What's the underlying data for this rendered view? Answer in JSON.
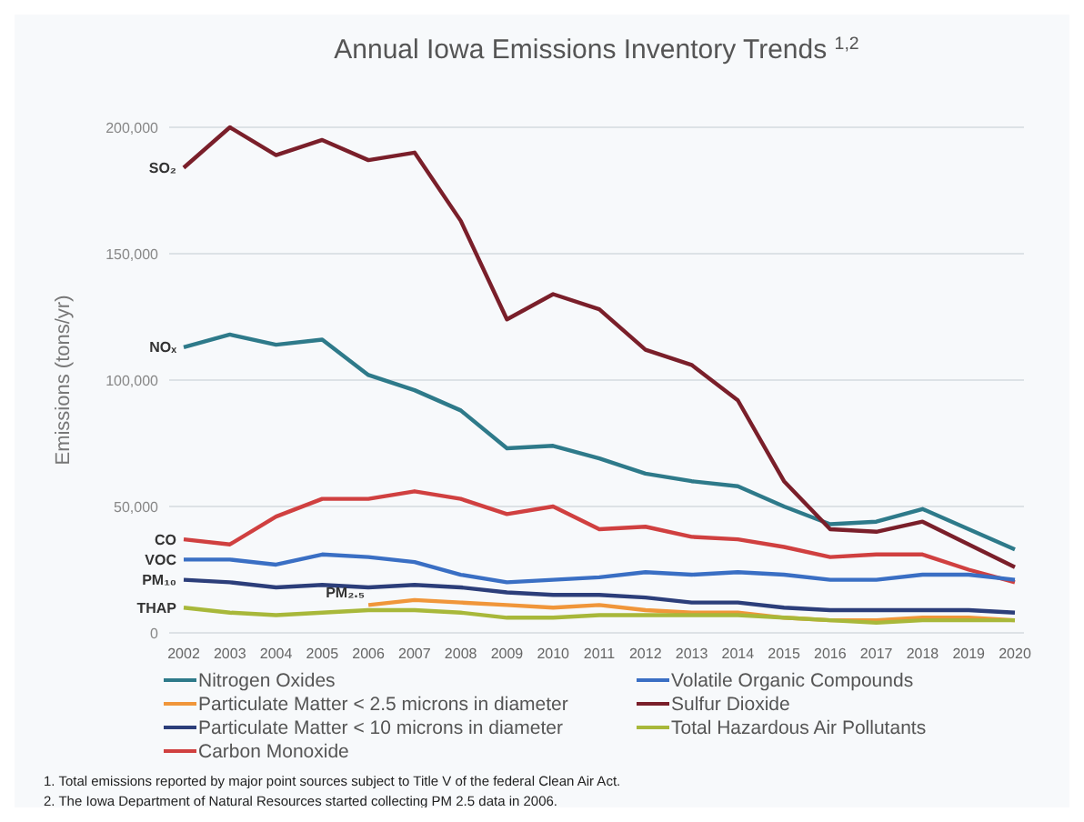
{
  "chart_data": {
    "type": "line",
    "title": "Annual Iowa Emissions Inventory Trends $^{1,2}$",
    "ylabel": "Emissions (tons/yr)",
    "categories": [
      "2002",
      "2003",
      "2004",
      "2005",
      "2006",
      "2007",
      "2008",
      "2009",
      "2010",
      "2011",
      "2012",
      "2013",
      "2014",
      "2015",
      "2016",
      "2017",
      "2018",
      "2019",
      "2020"
    ],
    "series": [
      {
        "name": "Nitrogen Oxides",
        "color": "#2e7a8a",
        "values": [
          113000,
          118000,
          114000,
          116000,
          102000,
          96000,
          88000,
          73000,
          74000,
          69000,
          63000,
          60000,
          58000,
          50000,
          43000,
          44000,
          49000,
          41000,
          33000
        ]
      },
      {
        "name": "Particulate Matter < 2.5 microns in diameter",
        "color": "#f0963a",
        "values": [
          null,
          null,
          null,
          null,
          11000,
          13000,
          12000,
          11000,
          10000,
          11000,
          9000,
          8000,
          8000,
          6000,
          5000,
          5000,
          6000,
          6000,
          5000
        ]
      },
      {
        "name": "Particulate Matter < 10 microns in diameter",
        "color": "#2c3e7a",
        "values": [
          21000,
          20000,
          18000,
          19000,
          18000,
          19000,
          18000,
          16000,
          15000,
          15000,
          14000,
          12000,
          12000,
          10000,
          9000,
          9000,
          9000,
          9000,
          8000
        ]
      },
      {
        "name": "Carbon Monoxide",
        "color": "#d04040",
        "values": [
          37000,
          35000,
          46000,
          53000,
          53000,
          56000,
          53000,
          47000,
          50000,
          41000,
          42000,
          38000,
          37000,
          34000,
          30000,
          31000,
          31000,
          25000,
          20000
        ]
      },
      {
        "name": "Volatile Organic Compounds",
        "color": "#3a6fc4",
        "values": [
          29000,
          29000,
          27000,
          31000,
          30000,
          28000,
          23000,
          20000,
          21000,
          22000,
          24000,
          23000,
          24000,
          23000,
          21000,
          21000,
          23000,
          23000,
          21000
        ]
      },
      {
        "name": "Sulfur Dioxide",
        "color": "#7a1f2a",
        "values": [
          184000,
          200000,
          189000,
          195000,
          187000,
          190000,
          163000,
          124000,
          134000,
          128000,
          112000,
          106000,
          92000,
          60000,
          41000,
          40000,
          44000,
          35000,
          26000
        ]
      },
      {
        "name": "Total Hazardous Air Pollutants",
        "color": "#a8b83a",
        "values": [
          10000,
          8000,
          7000,
          8000,
          9000,
          9000,
          8000,
          6000,
          6000,
          7000,
          7000,
          7000,
          7000,
          6000,
          5000,
          4000,
          5000,
          5000,
          5000
        ]
      }
    ],
    "ylim": [
      0,
      200000
    ],
    "yticks": [
      0,
      {
        "value": 50000,
        "label": "50,000"
      },
      {
        "value": 100000,
        "label": "100,000"
      },
      {
        "value": 150000,
        "label": "150,000"
      },
      {
        "value": 200000,
        "label": "200,000"
      }
    ],
    "grid": "y",
    "legend": "bottom",
    "line_style": "solid",
    "marker": "none",
    "annotations": [
      {
        "text": "SO₂",
        "x": "2002",
        "y": 184000
      },
      {
        "text": "NOₓ",
        "x": "2002",
        "y": 113000
      },
      {
        "text": "CO",
        "x": "2002",
        "y": 37000
      },
      {
        "text": "VOC",
        "x": "2002",
        "y": 29000
      },
      {
        "text": "PM₁₀",
        "x": "2002",
        "y": 21000
      },
      {
        "text": "THAP",
        "x": "2002",
        "y": 10000
      },
      {
        "text": "PM₂.₅",
        "x": "2006",
        "y": 11000
      },
      "1. Total emissions reported by major point sources subject to Title V of the federal Clean Air Act.",
      "2. The Iowa Department of Natural Resources started collecting PM 2.5 data in 2006."
    ]
  }
}
